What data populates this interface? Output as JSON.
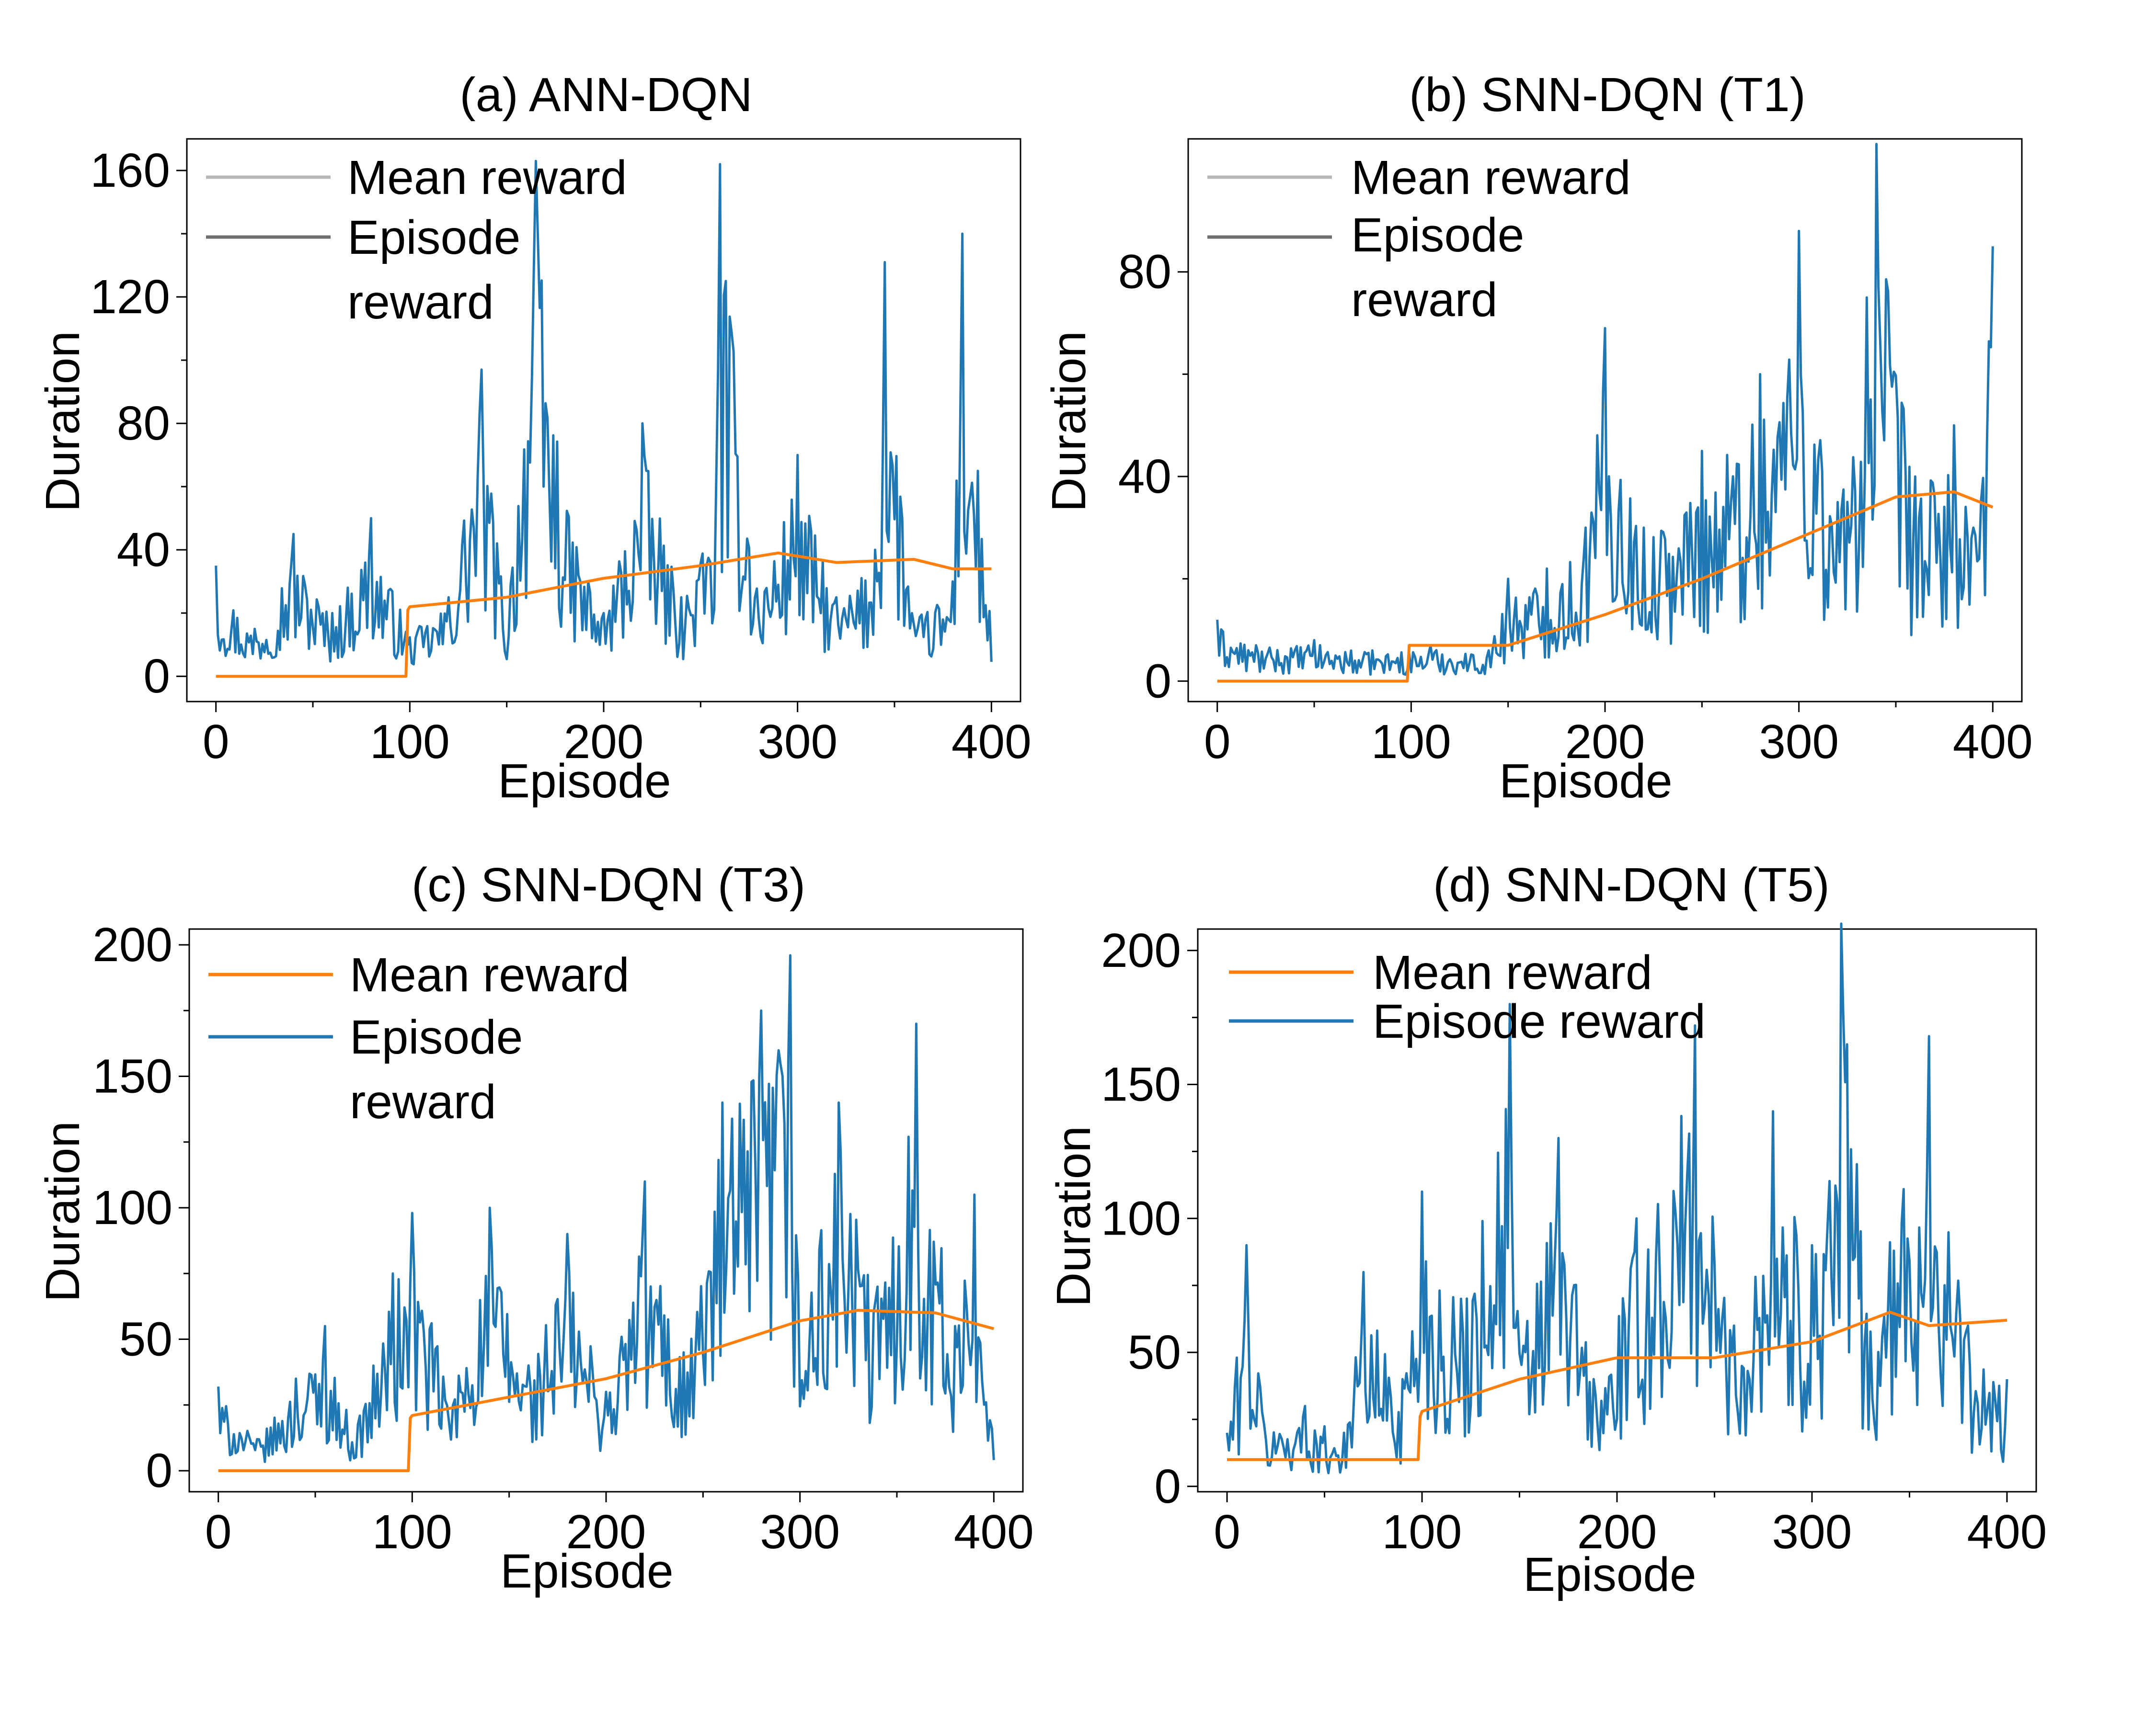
{
  "colors": {
    "mean": "#ff7f0e",
    "episode": "#1f77b4",
    "legend_mean_faded": "#b8b8b8",
    "legend_episode_faded": "#6e6e6e"
  },
  "chart_data": [
    {
      "type": "line",
      "title": "(a) ANN-DQN",
      "xlabel": "Episode",
      "ylabel": "Duration",
      "xlim": [
        -15,
        415
      ],
      "ylim": [
        -8,
        170
      ],
      "xticks": [
        0,
        100,
        200,
        300,
        400
      ],
      "yticks": [
        0,
        40,
        80,
        120,
        160
      ],
      "grid": false,
      "legend": {
        "placement": "top-left",
        "style": "faded",
        "entries": [
          "Mean reward",
          "Episode",
          "reward"
        ]
      },
      "series": [
        {
          "role": "episode",
          "x": [
            0,
            20,
            40,
            60,
            80,
            100,
            120,
            137,
            150,
            165,
            180,
            200,
            220,
            240,
            258,
            260,
            280,
            300,
            320,
            340,
            345,
            360,
            380,
            385,
            400
          ],
          "y": [
            35,
            15,
            45,
            20,
            50,
            15,
            25,
            97,
            20,
            163,
            60,
            20,
            80,
            25,
            60,
            162,
            30,
            70,
            25,
            40,
            131,
            20,
            30,
            140,
            15
          ]
        },
        {
          "role": "mean",
          "x": [
            0,
            98,
            99,
            100,
            150,
            200,
            250,
            290,
            320,
            360,
            380,
            400
          ],
          "y": [
            0,
            0,
            21,
            22,
            25,
            31,
            35,
            39,
            36,
            37,
            34,
            34
          ]
        }
      ]
    },
    {
      "type": "line",
      "title": "(b) SNN-DQN (T1)",
      "xlabel": "Episode",
      "ylabel": "Duration",
      "xlim": [
        -15,
        415
      ],
      "ylim": [
        -4,
        106
      ],
      "xticks": [
        0,
        100,
        200,
        300,
        400
      ],
      "yticks": [
        0,
        40,
        80
      ],
      "grid": false,
      "legend": {
        "placement": "top-left",
        "style": "faded",
        "entries": [
          "Mean reward",
          "Episode",
          "reward"
        ]
      },
      "series": [
        {
          "role": "episode",
          "x": [
            0,
            20,
            50,
            80,
            110,
            140,
            150,
            170,
            190,
            200,
            220,
            250,
            280,
            300,
            320,
            335,
            340,
            360,
            380,
            390,
            400
          ],
          "y": [
            12,
            7,
            8,
            6,
            7,
            6,
            20,
            22,
            30,
            69,
            30,
            45,
            60,
            88,
            35,
            75,
            105,
            40,
            50,
            30,
            85
          ]
        },
        {
          "role": "mean",
          "x": [
            0,
            98,
            99,
            100,
            150,
            200,
            250,
            300,
            350,
            380,
            400
          ],
          "y": [
            0,
            0,
            7,
            7,
            7,
            13,
            20,
            28,
            36,
            37,
            34
          ]
        }
      ]
    },
    {
      "type": "line",
      "title": "(c) SNN-DQN (T3)",
      "xlabel": "Episode",
      "ylabel": "Duration",
      "xlim": [
        -15,
        415
      ],
      "ylim": [
        -8,
        206
      ],
      "xticks": [
        0,
        100,
        200,
        300,
        400
      ],
      "yticks": [
        0,
        50,
        100,
        150,
        200
      ],
      "grid": false,
      "legend": {
        "placement": "top-left",
        "style": "solid",
        "entries": [
          "Mean reward",
          "Episode",
          "reward"
        ]
      },
      "series": [
        {
          "role": "episode",
          "x": [
            0,
            20,
            40,
            55,
            70,
            90,
            100,
            120,
            140,
            160,
            180,
            200,
            220,
            240,
            260,
            280,
            295,
            300,
            320,
            340,
            360,
            380,
            390,
            400
          ],
          "y": [
            32,
            12,
            35,
            55,
            15,
            75,
            98,
            30,
            100,
            40,
            90,
            30,
            110,
            45,
            140,
            175,
            196,
            60,
            140,
            70,
            170,
            55,
            105,
            20
          ]
        },
        {
          "role": "mean",
          "x": [
            0,
            98,
            99,
            100,
            150,
            200,
            250,
            300,
            330,
            370,
            400
          ],
          "y": [
            0,
            0,
            20,
            21,
            28,
            35,
            45,
            57,
            61,
            60,
            54
          ]
        }
      ]
    },
    {
      "type": "line",
      "title": "(d) SNN-DQN (T5)",
      "xlabel": "Episode",
      "ylabel": "Duration",
      "xlim": [
        -15,
        415
      ],
      "ylim": [
        -2,
        208
      ],
      "xticks": [
        0,
        100,
        200,
        300,
        400
      ],
      "yticks": [
        0,
        50,
        100,
        150,
        200
      ],
      "grid": false,
      "legend": {
        "placement": "top-left",
        "style": "solid",
        "entries": [
          "Mean reward",
          "Episode reward"
        ]
      },
      "series": [
        {
          "role": "episode",
          "x": [
            0,
            10,
            20,
            40,
            60,
            70,
            90,
            100,
            120,
            145,
            150,
            170,
            190,
            210,
            240,
            260,
            280,
            300,
            315,
            330,
            360,
            380,
            400
          ],
          "y": [
            20,
            90,
            25,
            30,
            20,
            80,
            40,
            110,
            70,
            180,
            60,
            130,
            40,
            100,
            172,
            60,
            140,
            90,
            210,
            70,
            168,
            60,
            40
          ]
        },
        {
          "role": "mean",
          "x": [
            0,
            98,
            99,
            100,
            150,
            200,
            250,
            300,
            340,
            360,
            400
          ],
          "y": [
            10,
            10,
            26,
            28,
            40,
            48,
            48,
            54,
            65,
            60,
            62
          ]
        }
      ]
    }
  ]
}
